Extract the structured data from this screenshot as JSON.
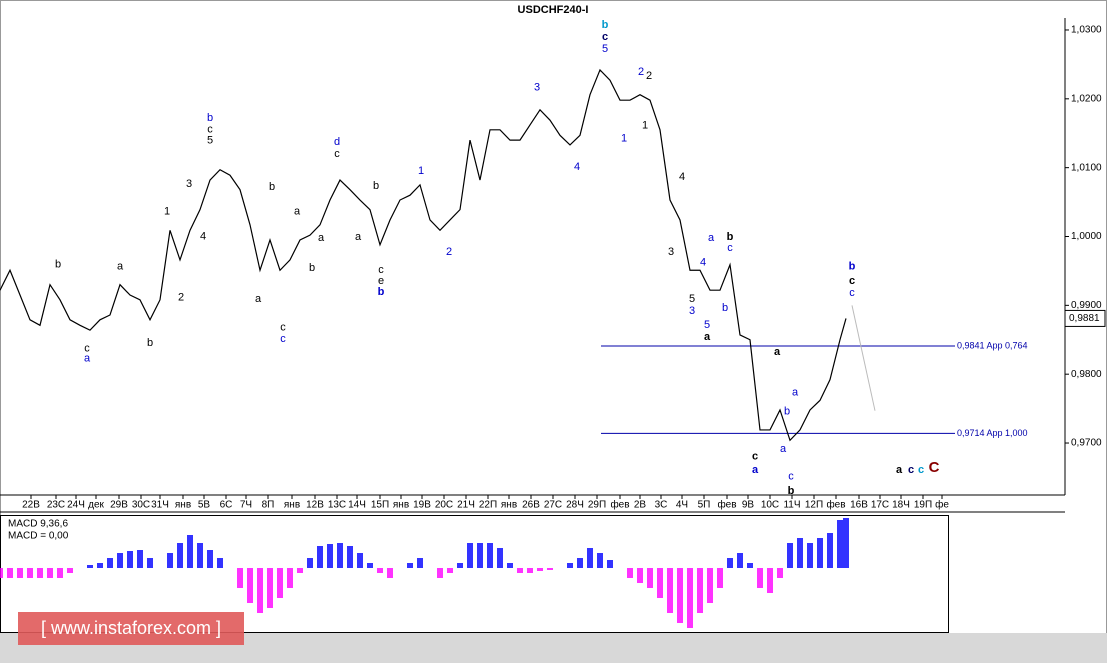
{
  "chart_data": [
    {
      "type": "line",
      "title": "USDCHF240-I",
      "x": [
        0,
        2,
        4,
        6,
        8,
        10,
        12,
        14,
        16,
        18,
        20,
        22,
        24,
        26,
        28,
        30,
        32,
        34,
        36,
        38,
        40,
        42,
        44,
        46,
        48,
        50,
        52,
        54,
        56,
        58,
        60,
        62,
        64,
        66,
        68,
        70,
        72,
        74,
        76,
        78,
        80,
        82,
        84,
        86,
        88,
        90,
        92,
        94,
        96,
        98,
        100,
        102,
        104,
        106,
        108,
        110,
        112,
        114,
        116,
        118,
        120,
        122,
        124,
        126,
        128,
        130,
        132,
        134,
        136,
        138,
        140,
        142,
        144,
        146,
        148,
        150,
        152,
        154,
        156,
        158,
        160,
        162,
        164,
        166,
        168,
        169.2
      ],
      "values": [
        0.9922,
        0.9951,
        0.9915,
        0.9879,
        0.9871,
        0.993,
        0.9908,
        0.9879,
        0.9871,
        0.9864,
        0.9879,
        0.9886,
        0.993,
        0.9915,
        0.9908,
        0.9879,
        0.9908,
        1.0009,
        0.9966,
        1.0009,
        1.0039,
        1.0082,
        1.0097,
        1.0089,
        1.0068,
        1.0017,
        0.9951,
        0.9995,
        0.9951,
        0.9966,
        0.9995,
        1.0002,
        1.0017,
        1.0053,
        1.0082,
        1.0068,
        1.0053,
        1.0039,
        0.9988,
        1.0024,
        1.0053,
        1.006,
        1.0075,
        1.0024,
        1.0009,
        1.0024,
        1.0039,
        1.014,
        1.0082,
        1.0155,
        1.0155,
        1.014,
        1.014,
        1.0162,
        1.0184,
        1.0169,
        1.0147,
        1.0133,
        1.0147,
        1.0206,
        1.0242,
        1.0227,
        1.0198,
        1.0198,
        1.0206,
        1.0198,
        1.0155,
        1.0053,
        1.0024,
        0.9951,
        0.9951,
        0.9922,
        0.9922,
        0.9959,
        0.9857,
        0.985,
        0.9719,
        0.9719,
        0.9748,
        0.9704,
        0.9719,
        0.9748,
        0.9762,
        0.9792,
        0.985,
        0.9881
      ],
      "color": "#000000",
      "xlim": [
        0,
        213
      ],
      "ylim": [
        0.96245,
        1.03174
      ],
      "xticks": [
        {
          "value": 6.2,
          "label": "22В"
        },
        {
          "value": 11.2,
          "label": "23С"
        },
        {
          "value": 15.2,
          "label": "24Ч"
        },
        {
          "value": 19.2,
          "label": "дек"
        },
        {
          "value": 23.8,
          "label": "29В"
        },
        {
          "value": 28.2,
          "label": "30С"
        },
        {
          "value": 32,
          "label": "31Ч"
        },
        {
          "value": 36.6,
          "label": "янв"
        },
        {
          "value": 40.8,
          "label": "5В"
        },
        {
          "value": 45.2,
          "label": "6С"
        },
        {
          "value": 49.2,
          "label": "7Ч"
        },
        {
          "value": 53.6,
          "label": "8П"
        },
        {
          "value": 58.4,
          "label": "янв"
        },
        {
          "value": 63,
          "label": "12В"
        },
        {
          "value": 67.4,
          "label": "13С"
        },
        {
          "value": 71.4,
          "label": "14Ч"
        },
        {
          "value": 76,
          "label": "15П"
        },
        {
          "value": 80.2,
          "label": "янв"
        },
        {
          "value": 84.4,
          "label": "19В"
        },
        {
          "value": 88.8,
          "label": "20С"
        },
        {
          "value": 93.2,
          "label": "21Ч"
        },
        {
          "value": 97.6,
          "label": "22П"
        },
        {
          "value": 101.8,
          "label": "янв"
        },
        {
          "value": 106.2,
          "label": "26В"
        },
        {
          "value": 110.6,
          "label": "27С"
        },
        {
          "value": 115,
          "label": "28Ч"
        },
        {
          "value": 119.4,
          "label": "29П"
        },
        {
          "value": 124,
          "label": "фев"
        },
        {
          "value": 128,
          "label": "2В"
        },
        {
          "value": 132.2,
          "label": "3С"
        },
        {
          "value": 136.4,
          "label": "4Ч"
        },
        {
          "value": 140.8,
          "label": "5П"
        },
        {
          "value": 145.4,
          "label": "фев"
        },
        {
          "value": 149.6,
          "label": "9В"
        },
        {
          "value": 154,
          "label": "10С"
        },
        {
          "value": 158.4,
          "label": "11Ч"
        },
        {
          "value": 162.8,
          "label": "12П"
        },
        {
          "value": 167.2,
          "label": "фев"
        },
        {
          "value": 171.8,
          "label": "16В"
        },
        {
          "value": 176,
          "label": "17С"
        },
        {
          "value": 180.2,
          "label": "18Ч"
        },
        {
          "value": 184.6,
          "label": "19П"
        },
        {
          "value": 188.4,
          "label": "фе"
        }
      ],
      "yticks": [
        {
          "value": 1.03,
          "label": "1,0300"
        },
        {
          "value": 1.02,
          "label": "1,0200"
        },
        {
          "value": 1.01,
          "label": "1,0100"
        },
        {
          "value": 1.0,
          "label": "1,0000"
        },
        {
          "value": 0.99,
          "label": "0,9900"
        },
        {
          "value": 0.98,
          "label": "0,9800"
        },
        {
          "value": 0.97,
          "label": "0,9700"
        }
      ],
      "last_price": {
        "value": 0.9881,
        "label": "0,9881"
      },
      "levels": [
        {
          "value": 0.9841,
          "label": "0,9841 App 0,764",
          "x_start": 120.2,
          "color": "#0000aa"
        },
        {
          "value": 0.9714,
          "label": "0,9714 App 1,000",
          "x_start": 120.2,
          "color": "#0000aa"
        }
      ],
      "trendline": {
        "x": [
          170.4,
          175
        ],
        "values": [
          0.99,
          0.9747
        ],
        "color": "#bbbbbb"
      },
      "annotations": [
        {
          "text": "b",
          "x": 121,
          "y": 1.0307,
          "color": "#0099cc",
          "bold": true
        },
        {
          "text": "c",
          "x": 121,
          "y": 1.029,
          "color": "#000066",
          "bold": true
        },
        {
          "text": "5",
          "x": 121,
          "y": 1.0272,
          "color": "#0000cc"
        },
        {
          "text": "b",
          "x": 42,
          "y": 1.0172,
          "color": "#0000cc"
        },
        {
          "text": "c",
          "x": 42,
          "y": 1.0155,
          "color": "#000000"
        },
        {
          "text": "5",
          "x": 42,
          "y": 1.0139,
          "color": "#000000"
        },
        {
          "text": "3",
          "x": 107.4,
          "y": 1.0216,
          "color": "#0000cc"
        },
        {
          "text": "2",
          "x": 128.2,
          "y": 1.0239,
          "color": "#0000cc"
        },
        {
          "text": "2",
          "x": 129.8,
          "y": 1.0233,
          "color": "#000000"
        },
        {
          "text": "1",
          "x": 129,
          "y": 1.0161,
          "color": "#000000"
        },
        {
          "text": "1",
          "x": 124.8,
          "y": 1.0142,
          "color": "#0000cc"
        },
        {
          "text": "4",
          "x": 115.4,
          "y": 1.0101,
          "color": "#0000cc"
        },
        {
          "text": "d",
          "x": 67.4,
          "y": 1.0137,
          "color": "#0000cc"
        },
        {
          "text": "c",
          "x": 67.4,
          "y": 1.012,
          "color": "#000000"
        },
        {
          "text": "1",
          "x": 84.2,
          "y": 1.0095,
          "color": "#0000cc"
        },
        {
          "text": "3",
          "x": 37.8,
          "y": 1.0076,
          "color": "#000000"
        },
        {
          "text": "1",
          "x": 33.4,
          "y": 1.0036,
          "color": "#000000"
        },
        {
          "text": "4",
          "x": 40.6,
          "y": 1.0,
          "color": "#000000"
        },
        {
          "text": "2",
          "x": 36.2,
          "y": 0.9911,
          "color": "#000000"
        },
        {
          "text": "b",
          "x": 54.4,
          "y": 1.0072,
          "color": "#000000"
        },
        {
          "text": "a",
          "x": 59.4,
          "y": 1.0036,
          "color": "#000000"
        },
        {
          "text": "a",
          "x": 64.2,
          "y": 0.9998,
          "color": "#000000"
        },
        {
          "text": "a",
          "x": 71.6,
          "y": 0.9999,
          "color": "#000000"
        },
        {
          "text": "b",
          "x": 75.2,
          "y": 1.0073,
          "color": "#000000"
        },
        {
          "text": "b",
          "x": 62.4,
          "y": 0.9954,
          "color": "#000000"
        },
        {
          "text": "c",
          "x": 76.2,
          "y": 0.9951,
          "color": "#000000"
        },
        {
          "text": "e",
          "x": 76.2,
          "y": 0.9935,
          "color": "#000000"
        },
        {
          "text": "b",
          "x": 76.2,
          "y": 0.9919,
          "color": "#0000cc",
          "bold": true
        },
        {
          "text": "2",
          "x": 89.8,
          "y": 0.9977,
          "color": "#0000cc"
        },
        {
          "text": "a",
          "x": 51.6,
          "y": 0.9909,
          "color": "#000000"
        },
        {
          "text": "c",
          "x": 56.6,
          "y": 0.9868,
          "color": "#000000"
        },
        {
          "text": "c",
          "x": 56.6,
          "y": 0.9851,
          "color": "#0000cc"
        },
        {
          "text": "b",
          "x": 11.6,
          "y": 0.9959,
          "color": "#000000"
        },
        {
          "text": "a",
          "x": 24,
          "y": 0.9956,
          "color": "#000000"
        },
        {
          "text": "b",
          "x": 30,
          "y": 0.9845,
          "color": "#000000"
        },
        {
          "text": "c",
          "x": 17.4,
          "y": 0.9837,
          "color": "#000000"
        },
        {
          "text": "a",
          "x": 17.4,
          "y": 0.9823,
          "color": "#0000cc"
        },
        {
          "text": "4",
          "x": 136.4,
          "y": 1.0086,
          "color": "#000000"
        },
        {
          "text": "3",
          "x": 134.2,
          "y": 0.9977,
          "color": "#000000"
        },
        {
          "text": "a",
          "x": 142.2,
          "y": 0.9998,
          "color": "#0000cc"
        },
        {
          "text": "4",
          "x": 140.6,
          "y": 0.9962,
          "color": "#0000cc"
        },
        {
          "text": "5",
          "x": 138.4,
          "y": 0.9909,
          "color": "#000000"
        },
        {
          "text": "3",
          "x": 138.4,
          "y": 0.9892,
          "color": "#0000cc"
        },
        {
          "text": "5",
          "x": 141.4,
          "y": 0.9871,
          "color": "#0000cc"
        },
        {
          "text": "a",
          "x": 141.4,
          "y": 0.9854,
          "color": "#000000",
          "bold": true
        },
        {
          "text": "b",
          "x": 146,
          "y": 0.9999,
          "color": "#000000",
          "bold": true
        },
        {
          "text": "c",
          "x": 146,
          "y": 0.9983,
          "color": "#0000cc"
        },
        {
          "text": "b",
          "x": 145,
          "y": 0.9896,
          "color": "#0000cc"
        },
        {
          "text": "a",
          "x": 155.4,
          "y": 0.9832,
          "color": "#000000",
          "bold": true
        },
        {
          "text": "c",
          "x": 151,
          "y": 0.968,
          "color": "#000000",
          "bold": true
        },
        {
          "text": "a",
          "x": 151,
          "y": 0.9661,
          "color": "#0000cc",
          "bold": true
        },
        {
          "text": "a",
          "x": 159,
          "y": 0.9773,
          "color": "#0000cc"
        },
        {
          "text": "b",
          "x": 157.4,
          "y": 0.9746,
          "color": "#0000cc"
        },
        {
          "text": "a",
          "x": 156.6,
          "y": 0.9691,
          "color": "#0000cc"
        },
        {
          "text": "c",
          "x": 158.2,
          "y": 0.9651,
          "color": "#0000cc"
        },
        {
          "text": "b",
          "x": 158.2,
          "y": 0.963,
          "color": "#000000",
          "bold": true
        },
        {
          "text": "b",
          "x": 170.4,
          "y": 0.9956,
          "color": "#0000cc",
          "bold": true
        },
        {
          "text": "c",
          "x": 170.4,
          "y": 0.9935,
          "color": "#000000",
          "bold": true
        },
        {
          "text": "c",
          "x": 170.4,
          "y": 0.9918,
          "color": "#0000cc"
        },
        {
          "text": "a",
          "x": 179.8,
          "y": 0.9661,
          "color": "#000000",
          "bold": true
        },
        {
          "text": "c",
          "x": 182.2,
          "y": 0.9661,
          "color": "#000066",
          "bold": true
        },
        {
          "text": "c",
          "x": 184.2,
          "y": 0.9661,
          "color": "#0099cc",
          "bold": true
        },
        {
          "text": "C",
          "x": 186.8,
          "y": 0.9664,
          "color": "#880000",
          "bold": true,
          "big": true
        }
      ]
    },
    {
      "type": "bar",
      "title": "MACD 9,36,6",
      "subtitle": "MACD = 0,00",
      "x": [
        0,
        2,
        4,
        6,
        8,
        10,
        12,
        14,
        16,
        18,
        20,
        22,
        24,
        26,
        28,
        30,
        32,
        34,
        36,
        38,
        40,
        42,
        44,
        46,
        48,
        50,
        52,
        54,
        56,
        58,
        60,
        62,
        64,
        66,
        68,
        70,
        72,
        74,
        76,
        78,
        80,
        82,
        84,
        86,
        88,
        90,
        92,
        94,
        96,
        98,
        100,
        102,
        104,
        106,
        108,
        110,
        112,
        114,
        116,
        118,
        120,
        122,
        124,
        126,
        128,
        130,
        132,
        134,
        136,
        138,
        140,
        142,
        144,
        146,
        148,
        150,
        152,
        154,
        156,
        158,
        160,
        162,
        164,
        166,
        168,
        169.2
      ],
      "values": [
        -10,
        -10,
        -10,
        -10,
        -10,
        -10,
        -10,
        -5,
        0,
        3,
        5,
        10,
        15,
        17,
        18,
        10,
        0,
        15,
        25,
        33,
        25,
        18,
        10,
        0,
        -20,
        -35,
        -45,
        -40,
        -30,
        -20,
        -5,
        10,
        22,
        24,
        25,
        22,
        15,
        5,
        -5,
        -10,
        0,
        5,
        10,
        0,
        -10,
        -5,
        5,
        25,
        25,
        25,
        20,
        5,
        -5,
        -5,
        -3,
        -2,
        0,
        5,
        10,
        20,
        15,
        8,
        0,
        -10,
        -15,
        -20,
        -30,
        -45,
        -55,
        -60,
        -45,
        -35,
        -20,
        10,
        15,
        5,
        -20,
        -25,
        -10,
        25,
        30,
        25,
        30,
        35,
        48,
        50
      ],
      "color": "#0000ff",
      "negative_color": "#ff00ff",
      "xlim": [
        0,
        213
      ],
      "ylim": [
        -64,
        51
      ]
    }
  ],
  "watermark": "[ www.instaforex.com ]"
}
